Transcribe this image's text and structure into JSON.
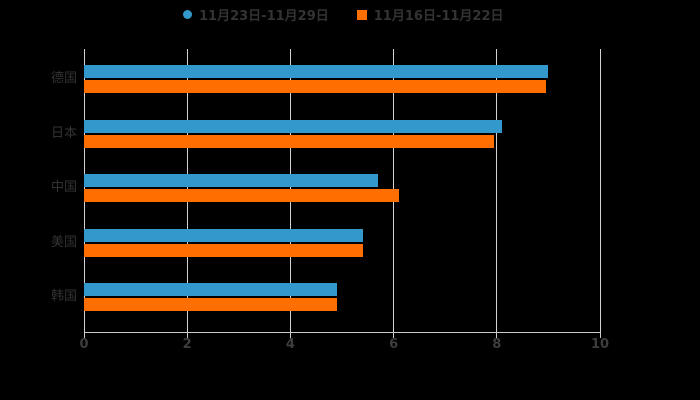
{
  "legend": {
    "items": [
      {
        "label": "11月23日-11月29日",
        "marker": "circle",
        "color": "#3398cc"
      },
      {
        "label": "11月16日-11月22日",
        "marker": "square",
        "color": "#ff6e00"
      }
    ]
  },
  "chart_data": {
    "type": "bar",
    "orientation": "horizontal",
    "title": "",
    "xlabel": "",
    "ylabel": "",
    "categories": [
      "德国",
      "日本",
      "中国",
      "美国",
      "韩国"
    ],
    "series": [
      {
        "name": "11月23日-11月29日",
        "color": "#3398cc",
        "values": [
          9.0,
          8.1,
          5.7,
          5.4,
          4.9
        ]
      },
      {
        "name": "11月16日-11月22日",
        "color": "#ff6e00",
        "values": [
          8.95,
          7.95,
          6.1,
          5.4,
          4.9
        ]
      }
    ],
    "xlim": [
      0,
      10
    ],
    "x_ticks": [
      0,
      2,
      4,
      6,
      8,
      10
    ],
    "grid": true,
    "legend_position": "top"
  },
  "colors": {
    "background": "#000000",
    "text": "#333333",
    "tick_text": "#3d3d3d",
    "gridline": "#d2d2d2",
    "axis": "#c9c9c9"
  }
}
